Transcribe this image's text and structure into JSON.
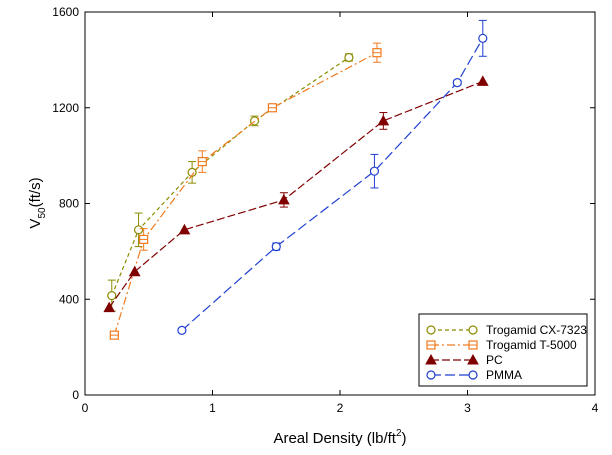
{
  "chart_data": {
    "type": "scatter",
    "xlabel": "Areal Density (lb/ft",
    "xlabel_sup": "2",
    "xlabel_end": ")",
    "ylabel": "V",
    "ylabel_sub": "50",
    "ylabel_end": "(ft/s)",
    "xlim": [
      0,
      4
    ],
    "ylim": [
      0,
      1600
    ],
    "xticks": [
      0,
      1,
      2,
      3,
      4
    ],
    "yticks": [
      0,
      400,
      800,
      1200,
      1600
    ],
    "grid": false,
    "legend_position": "bottom-right",
    "series": [
      {
        "name": "Trogamid CX-7323",
        "color": "#8b8b00",
        "marker": "circle-open",
        "dash": "4,3",
        "points": [
          {
            "x": 0.21,
            "y": 415,
            "err": 65
          },
          {
            "x": 0.42,
            "y": 690,
            "err": 70
          },
          {
            "x": 0.84,
            "y": 930,
            "err": 45
          },
          {
            "x": 1.33,
            "y": 1145,
            "err": 20
          },
          {
            "x": 2.07,
            "y": 1410,
            "err": 15
          }
        ]
      },
      {
        "name": "Trogamid T-5000",
        "color": "#f07a1e",
        "marker": "square-open",
        "dash": "8,3,2,3",
        "points": [
          {
            "x": 0.23,
            "y": 250,
            "err": 0
          },
          {
            "x": 0.46,
            "y": 650,
            "err": 45
          },
          {
            "x": 0.92,
            "y": 975,
            "err": 45
          },
          {
            "x": 1.47,
            "y": 1200,
            "err": 10
          },
          {
            "x": 2.29,
            "y": 1430,
            "err": 40
          }
        ]
      },
      {
        "name": "PC",
        "color": "#800000",
        "marker": "triangle-filled",
        "dash": "8,3",
        "points": [
          {
            "x": 0.19,
            "y": 365,
            "err": 0
          },
          {
            "x": 0.39,
            "y": 515,
            "err": 0
          },
          {
            "x": 0.78,
            "y": 690,
            "err": 0
          },
          {
            "x": 1.56,
            "y": 815,
            "err": 30
          },
          {
            "x": 2.34,
            "y": 1145,
            "err": 35
          },
          {
            "x": 3.12,
            "y": 1310,
            "err": 0
          }
        ]
      },
      {
        "name": "PMMA",
        "color": "#1f3fd0",
        "marker": "circle-open",
        "dash": "10,4",
        "points": [
          {
            "x": 0.76,
            "y": 270,
            "err": 0
          },
          {
            "x": 1.5,
            "y": 620,
            "err": 15
          },
          {
            "x": 2.27,
            "y": 935,
            "err": 70
          },
          {
            "x": 2.92,
            "y": 1305,
            "err": 10
          },
          {
            "x": 3.12,
            "y": 1490,
            "err": 75
          }
        ]
      }
    ]
  }
}
